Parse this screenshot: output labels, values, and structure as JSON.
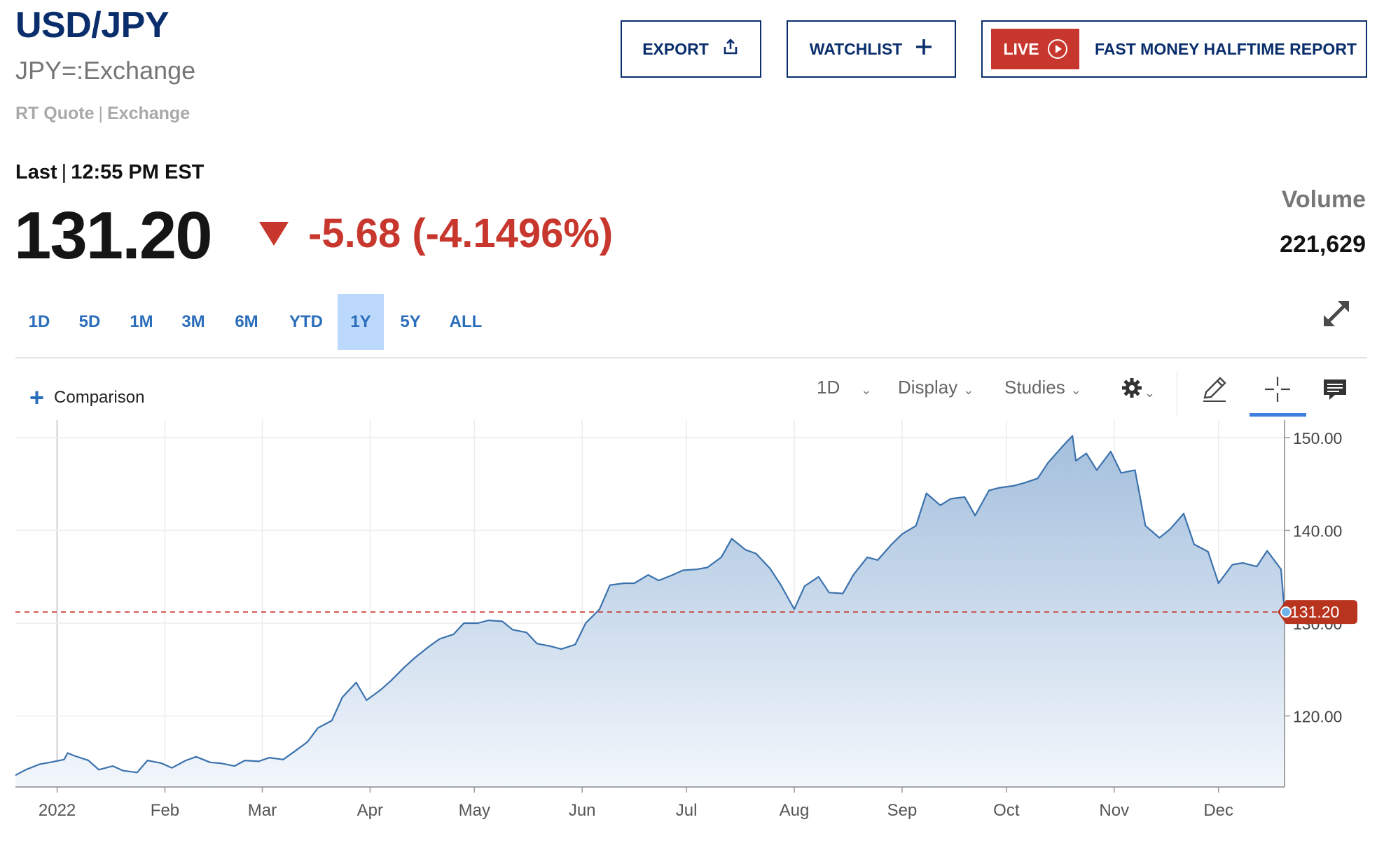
{
  "header": {
    "symbol": "USD/JPY",
    "exchange_name": "JPY=:Exchange",
    "rt_quote": "RT Quote",
    "rt_sep": "|",
    "rt_exchange": "Exchange"
  },
  "buttons": {
    "export": "EXPORT",
    "watchlist": "WATCHLIST",
    "live": "LIVE",
    "live_title": "FAST MONEY HALFTIME REPORT"
  },
  "quote": {
    "last_label": "Last",
    "last_sep": "|",
    "last_time": "12:55 PM EST",
    "price": "131.20",
    "change": "-5.68 (-4.1496%)",
    "volume_label": "Volume",
    "volume_value": "221,629"
  },
  "ranges": [
    "1D",
    "5D",
    "1M",
    "3M",
    "6M",
    "YTD",
    "1Y",
    "5Y",
    "ALL"
  ],
  "active_range": "1Y",
  "toolbar": {
    "comparison": "Comparison",
    "interval": "1D",
    "display": "Display",
    "studies": "Studies"
  },
  "colors": {
    "accent": "#2a6ebb",
    "brand": "#0a2e6c",
    "negative": "#c8372d",
    "line": "#3b72ad"
  },
  "icons": {
    "export": "share-icon",
    "watchlist": "plus-icon",
    "live": "play-circle-icon",
    "expand": "expand-icon",
    "settings": "gear-icon",
    "draw": "pencil-icon",
    "crosshair": "crosshair-icon",
    "comment": "comment-icon"
  },
  "chart_data": {
    "type": "area",
    "x_labels": [
      "2022",
      "Feb",
      "Mar",
      "Apr",
      "May",
      "Jun",
      "Jul",
      "Aug",
      "Sep",
      "Oct",
      "Nov",
      "Dec"
    ],
    "y_ticks": [
      "150.00",
      "140.00",
      "130.00",
      "120.00"
    ],
    "ylim": [
      112.2,
      150.6
    ],
    "last_value": 131.2,
    "last_label": "131.20",
    "grid": true,
    "series": [
      {
        "x": [
          "2021-12-20",
          "2021-12-23",
          "2021-12-27",
          "2021-12-30",
          "2022-01-03",
          "2022-01-04",
          "2022-01-06",
          "2022-01-10",
          "2022-01-13",
          "2022-01-17",
          "2022-01-20",
          "2022-01-24",
          "2022-01-27",
          "2022-01-31",
          "2022-02-03",
          "2022-02-07",
          "2022-02-10",
          "2022-02-14",
          "2022-02-17",
          "2022-02-21",
          "2022-02-24",
          "2022-02-28",
          "2022-03-03",
          "2022-03-07",
          "2022-03-10",
          "2022-03-14",
          "2022-03-17",
          "2022-03-21",
          "2022-03-24",
          "2022-03-28",
          "2022-03-31",
          "2022-04-04",
          "2022-04-07",
          "2022-04-11",
          "2022-04-14",
          "2022-04-18",
          "2022-04-21",
          "2022-04-25",
          "2022-04-28",
          "2022-05-02",
          "2022-05-05",
          "2022-05-09",
          "2022-05-12",
          "2022-05-16",
          "2022-05-19",
          "2022-05-23",
          "2022-05-26",
          "2022-05-30",
          "2022-06-02",
          "2022-06-06",
          "2022-06-09",
          "2022-06-13",
          "2022-06-16",
          "2022-06-20",
          "2022-06-23",
          "2022-06-27",
          "2022-06-30",
          "2022-07-04",
          "2022-07-07",
          "2022-07-11",
          "2022-07-14",
          "2022-07-18",
          "2022-07-21",
          "2022-07-25",
          "2022-07-28",
          "2022-08-01",
          "2022-08-04",
          "2022-08-08",
          "2022-08-11",
          "2022-08-15",
          "2022-08-18",
          "2022-08-22",
          "2022-08-25",
          "2022-08-29",
          "2022-09-01",
          "2022-09-05",
          "2022-09-08",
          "2022-09-12",
          "2022-09-15",
          "2022-09-19",
          "2022-09-22",
          "2022-09-26",
          "2022-09-29",
          "2022-10-03",
          "2022-10-06",
          "2022-10-10",
          "2022-10-13",
          "2022-10-17",
          "2022-10-20",
          "2022-10-21",
          "2022-10-24",
          "2022-10-27",
          "2022-10-31",
          "2022-11-03",
          "2022-11-07",
          "2022-11-10",
          "2022-11-14",
          "2022-11-17",
          "2022-11-21",
          "2022-11-24",
          "2022-11-28",
          "2022-12-01",
          "2022-12-05",
          "2022-12-08",
          "2022-12-12",
          "2022-12-15",
          "2022-12-19",
          "2022-12-20"
        ],
        "y": [
          113.6,
          114.2,
          114.8,
          115.0,
          115.3,
          116.0,
          115.7,
          115.2,
          114.2,
          114.6,
          114.1,
          113.9,
          115.2,
          114.9,
          114.4,
          115.2,
          115.6,
          115.0,
          114.9,
          114.6,
          115.2,
          115.1,
          115.5,
          115.3,
          116.1,
          117.2,
          118.7,
          119.5,
          122.0,
          123.6,
          121.7,
          122.8,
          123.8,
          125.3,
          126.3,
          127.5,
          128.3,
          128.8,
          130.0,
          130.0,
          130.3,
          130.2,
          129.3,
          129.0,
          127.8,
          127.5,
          127.2,
          127.7,
          130.0,
          131.5,
          134.1,
          134.3,
          134.3,
          135.2,
          134.6,
          135.2,
          135.7,
          135.8,
          136.0,
          137.1,
          139.1,
          137.9,
          137.5,
          135.9,
          134.2,
          131.5,
          134.0,
          135.0,
          133.3,
          133.2,
          135.2,
          137.1,
          136.8,
          138.5,
          139.6,
          140.5,
          144.0,
          142.7,
          143.4,
          143.6,
          141.6,
          144.3,
          144.6,
          144.8,
          145.1,
          145.6,
          147.3,
          149.0,
          150.2,
          147.5,
          148.3,
          146.5,
          148.5,
          146.2,
          146.5,
          140.5,
          139.2,
          140.1,
          141.8,
          138.5,
          137.7,
          134.3,
          136.3,
          136.5,
          136.1,
          137.8,
          135.8,
          131.2
        ]
      }
    ]
  }
}
